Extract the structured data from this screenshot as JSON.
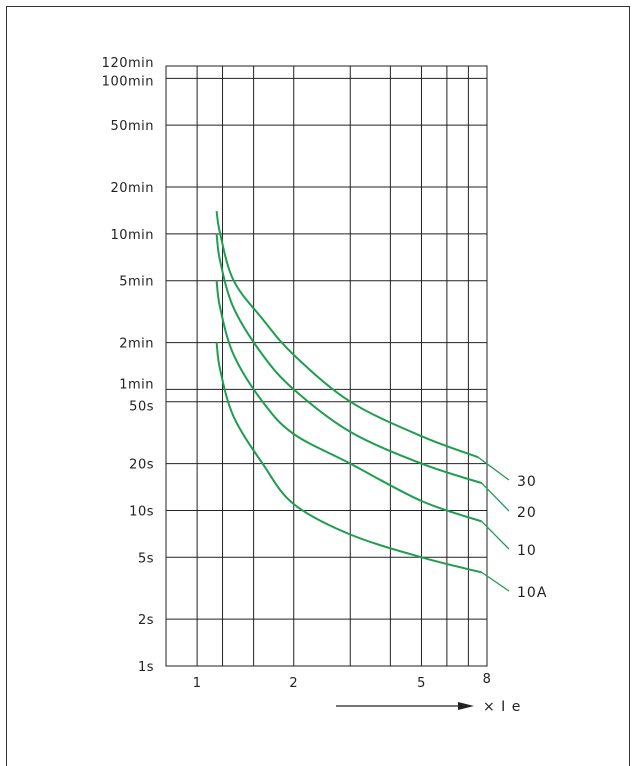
{
  "chart_data": {
    "type": "line",
    "title": "",
    "x_scale": "log",
    "y_scale": "log",
    "xlim": [
      0.8,
      8
    ],
    "ylim_seconds": [
      1,
      7200
    ],
    "grid": true,
    "x_ticks": [
      {
        "value": 1,
        "label": "1"
      },
      {
        "value": 2,
        "label": "2"
      },
      {
        "value": 5,
        "label": "5"
      },
      {
        "value": 8,
        "label": "8"
      }
    ],
    "x_minor_gridlines": [
      1.2,
      1.5,
      3,
      4,
      6,
      7
    ],
    "y_ticks": [
      {
        "value": 7200,
        "label": "120min"
      },
      {
        "value": 6000,
        "label": "100min"
      },
      {
        "value": 3000,
        "label": "50min"
      },
      {
        "value": 1200,
        "label": "20min"
      },
      {
        "value": 600,
        "label": "10min"
      },
      {
        "value": 300,
        "label": "5min"
      },
      {
        "value": 120,
        "label": "2min"
      },
      {
        "value": 60,
        "label": "1min"
      },
      {
        "value": 50,
        "label": "50s"
      },
      {
        "value": 20,
        "label": "20s"
      },
      {
        "value": 10,
        "label": "10s"
      },
      {
        "value": 5,
        "label": "5s"
      },
      {
        "value": 2,
        "label": "2s"
      },
      {
        "value": 1,
        "label": "1s"
      }
    ],
    "x_axis_title": "× I e",
    "series": [
      {
        "name": "30",
        "color": "#1e9e4e",
        "x": [
          1.15,
          1.18,
          1.3,
          1.6,
          2.0,
          3.0,
          5.0,
          7.5
        ],
        "y": [
          840,
          600,
          300,
          170,
          100,
          50,
          30,
          22
        ]
      },
      {
        "name": "20",
        "color": "#1e9e4e",
        "x": [
          1.15,
          1.18,
          1.3,
          1.6,
          2.0,
          3.0,
          5.0,
          7.7
        ],
        "y": [
          600,
          400,
          200,
          100,
          60,
          32,
          20,
          15
        ]
      },
      {
        "name": "10",
        "color": "#1e9e4e",
        "x": [
          1.15,
          1.18,
          1.3,
          1.6,
          2.0,
          3.0,
          5.0,
          7.7
        ],
        "y": [
          300,
          200,
          100,
          50,
          31,
          20,
          11.5,
          8.5
        ]
      },
      {
        "name": "10A",
        "color": "#1e9e4e",
        "x": [
          1.15,
          1.18,
          1.3,
          1.6,
          2.0,
          3.0,
          5.0,
          7.7
        ],
        "y": [
          120,
          80,
          40,
          20,
          11,
          7,
          5,
          4
        ]
      }
    ]
  }
}
